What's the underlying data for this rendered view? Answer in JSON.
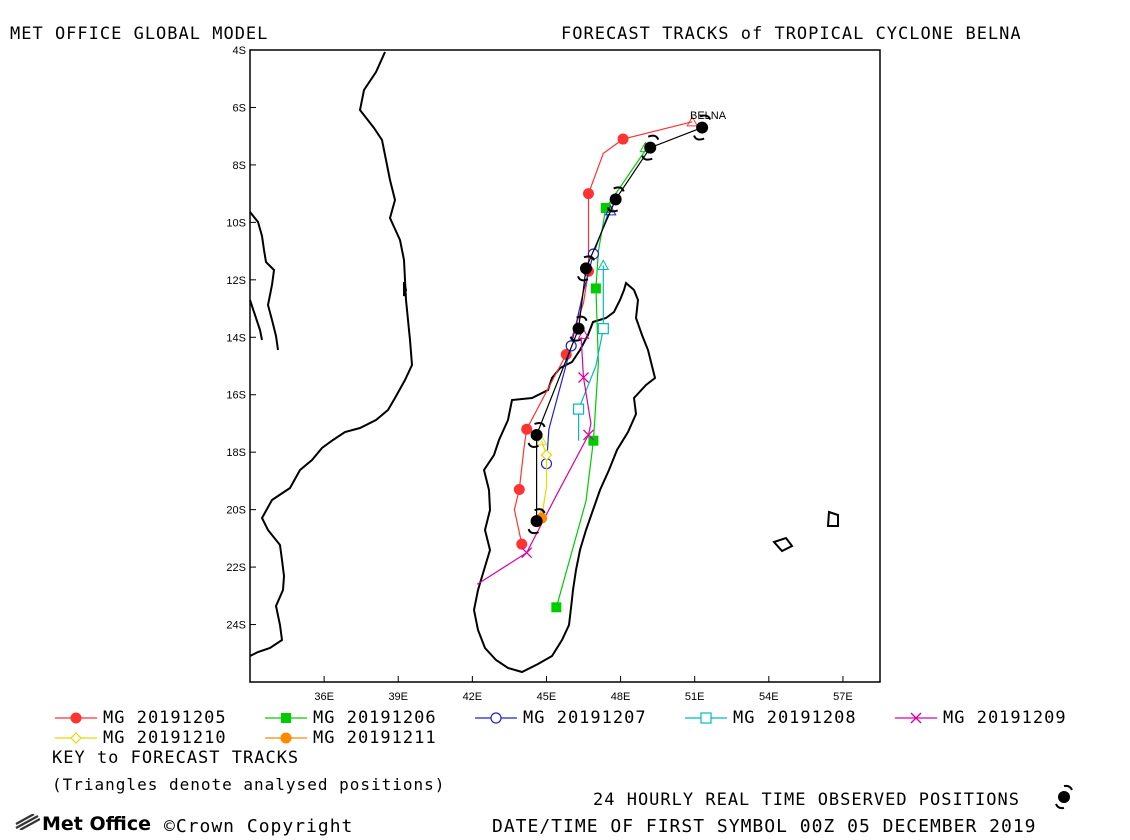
{
  "header": {
    "model": "MET OFFICE GLOBAL MODEL",
    "title": "FORECAST TRACKS of TROPICAL CYCLONE BELNA"
  },
  "map": {
    "storm_name": "BELNA",
    "lat_ticks": [
      "4S",
      "6S",
      "8S",
      "10S",
      "12S",
      "14S",
      "16S",
      "18S",
      "20S",
      "22S",
      "24S"
    ],
    "lon_ticks": [
      "36E",
      "39E",
      "42E",
      "45E",
      "48E",
      "51E",
      "54E",
      "57E"
    ],
    "lon_range": [
      33.0,
      58.5
    ],
    "lat_range": [
      -26.0,
      -4.0
    ]
  },
  "tracks": [
    {
      "name": "MG 20191205",
      "color": "#ff3333",
      "marker": "filled-circle",
      "points": [
        [
          50.9,
          -6.5
        ],
        [
          48.1,
          -7.1
        ],
        [
          47.3,
          -7.6
        ],
        [
          46.7,
          -9.0
        ],
        [
          46.7,
          -11.0
        ],
        [
          46.7,
          -11.7
        ],
        [
          46.5,
          -12.8
        ],
        [
          45.8,
          -14.6
        ],
        [
          45.3,
          -15.4
        ],
        [
          44.2,
          -17.2
        ],
        [
          44.1,
          -17.8
        ],
        [
          43.9,
          -19.3
        ],
        [
          43.7,
          -20.0
        ],
        [
          44.0,
          -21.2
        ]
      ]
    },
    {
      "name": "MG 20191206",
      "color": "#00cc00",
      "marker": "filled-square",
      "points": [
        [
          49.0,
          -7.5
        ],
        [
          47.4,
          -9.5
        ],
        [
          47.1,
          -11.0
        ],
        [
          47.0,
          -12.3
        ],
        [
          47.1,
          -14.9
        ],
        [
          46.9,
          -17.6
        ],
        [
          46.6,
          -19.7
        ],
        [
          45.4,
          -23.4
        ]
      ]
    },
    {
      "name": "MG 20191207",
      "color": "#2222cc",
      "marker": "open-circle",
      "points": [
        [
          47.5,
          -9.7
        ],
        [
          46.9,
          -11.1
        ],
        [
          46.5,
          -12.4
        ],
        [
          46.0,
          -14.3
        ],
        [
          45.1,
          -17.2
        ],
        [
          45.0,
          -18.4
        ]
      ]
    },
    {
      "name": "MG 20191208",
      "color": "#00bbbb",
      "marker": "open-square",
      "points": [
        [
          47.3,
          -11.5
        ],
        [
          47.3,
          -13.7
        ],
        [
          47.0,
          -15.0
        ],
        [
          46.3,
          -16.5
        ],
        [
          46.3,
          -17.6
        ]
      ]
    },
    {
      "name": "MG 20191209",
      "color": "#dd00aa",
      "marker": "cross",
      "points": [
        [
          46.4,
          -14.0
        ],
        [
          46.5,
          -15.4
        ],
        [
          46.8,
          -17.0
        ],
        [
          46.7,
          -17.4
        ],
        [
          45.4,
          -19.5
        ],
        [
          44.2,
          -21.5
        ],
        [
          42.2,
          -22.6
        ]
      ]
    },
    {
      "name": "MG 20191210",
      "color": "#dddd00",
      "marker": "open-diamond",
      "points": [
        [
          44.8,
          -17.6
        ],
        [
          45.0,
          -18.1
        ],
        [
          45.0,
          -19.2
        ],
        [
          44.8,
          -20.3
        ]
      ]
    },
    {
      "name": "MG 20191211",
      "color": "#ff8800",
      "marker": "filled-circle",
      "points": [
        [
          44.8,
          -20.3
        ]
      ]
    }
  ],
  "analysed_positions": [
    {
      "track": 0,
      "lon": 50.9,
      "lat": -6.5
    },
    {
      "track": 1,
      "lon": 49.0,
      "lat": -7.4
    },
    {
      "track": 2,
      "lon": 47.6,
      "lat": -9.6
    },
    {
      "track": 3,
      "lon": 47.3,
      "lat": -11.5
    },
    {
      "track": 4,
      "lon": 46.5,
      "lat": -13.9
    },
    {
      "track": 5,
      "lon": 44.8,
      "lat": -17.6
    },
    {
      "track": 6,
      "lon": 44.8,
      "lat": -20.2
    }
  ],
  "observed": [
    [
      51.3,
      -6.7
    ],
    [
      49.2,
      -7.4
    ],
    [
      47.8,
      -9.2
    ],
    [
      46.6,
      -11.6
    ],
    [
      46.3,
      -13.7
    ],
    [
      44.6,
      -17.4
    ],
    [
      44.6,
      -20.4
    ]
  ],
  "legend": {
    "key_title": "KEY to FORECAST TRACKS",
    "key_note": "(Triangles denote analysed positions)",
    "observed_label": "24 HOURLY REAL TIME OBSERVED POSITIONS",
    "datetime": "DATE/TIME OF FIRST SYMBOL 00Z 05 DECEMBER 2019"
  },
  "footer": {
    "brand": "Met Office",
    "copyright": "©Crown Copyright"
  }
}
